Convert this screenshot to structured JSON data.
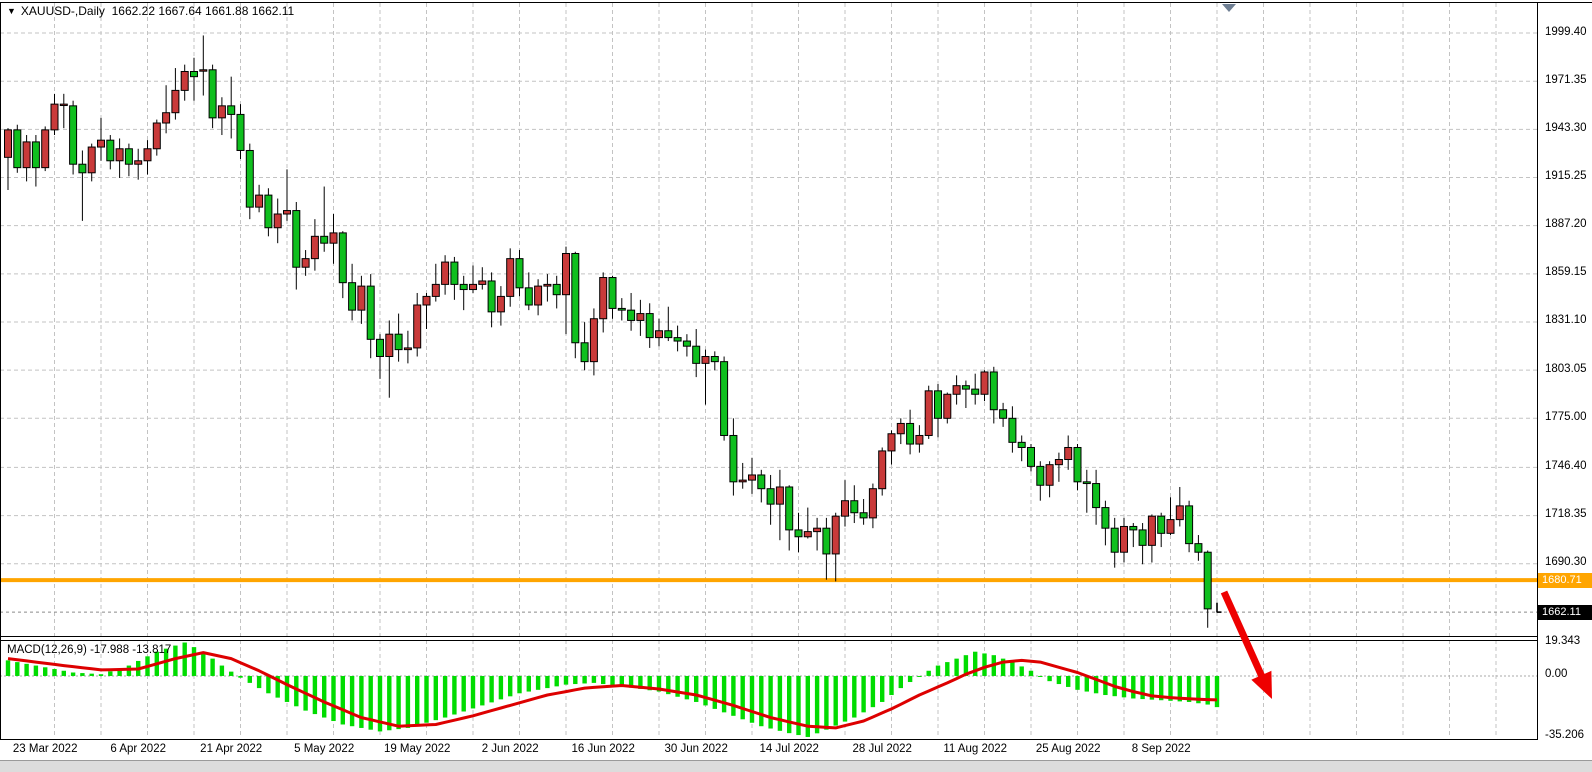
{
  "header": {
    "collapse_icon": "▼",
    "symbol": "XAUUSD-,Daily",
    "quote": "1662.22 1667.64 1661.88 1662.11"
  },
  "indicator_label": {
    "name": "MACD(12,26,9)",
    "values": "-17.988 -13.817"
  },
  "price_axis": {
    "labels": [
      "1999.40",
      "1971.35",
      "1943.30",
      "1915.25",
      "1887.20",
      "1859.15",
      "1831.10",
      "1803.05",
      "1775.00",
      "1746.40",
      "1718.35",
      "1690.30"
    ],
    "hline_badge": "1680.71",
    "bid_badge": "1662.11"
  },
  "macd_axis": {
    "labels": [
      "19.343",
      "0.00",
      "-35.206"
    ]
  },
  "colors": {
    "bull_body": "#C93A3A",
    "bear_body": "#0FBF1E",
    "body_outline": "#000000",
    "wick": "#000000",
    "macd_hist": "#00DC00",
    "macd_signal": "#DD0000",
    "hline": "#FFA500",
    "arrow": "#EE0000",
    "grid": "#C3C3C3",
    "bid_line": "#8A8A8A",
    "background": "#FFFFFF"
  },
  "chart_data": {
    "type": "candlestick",
    "symbol": "XAUUSD",
    "timeframe": "Daily",
    "title": "XAUUSD-,Daily",
    "current_bar": {
      "open": 1662.22,
      "high": 1667.64,
      "low": 1661.88,
      "close": 1662.11
    },
    "price_grid": [
      1999.4,
      1971.35,
      1943.3,
      1915.25,
      1887.2,
      1859.15,
      1831.1,
      1803.05,
      1775.0,
      1746.4,
      1718.35,
      1690.3
    ],
    "price_scale": {
      "max": 2016.9,
      "min": 1648.2
    },
    "support_hline": 1680.71,
    "bid_price": 1662.11,
    "date_ticks": [
      [
        4,
        "23 Mar 2022"
      ],
      [
        14,
        "6 Apr 2022"
      ],
      [
        24,
        "21 Apr 2022"
      ],
      [
        34,
        "5 May 2022"
      ],
      [
        44,
        "19 May 2022"
      ],
      [
        54,
        "2 Jun 2022"
      ],
      [
        64,
        "16 Jun 2022"
      ],
      [
        74,
        "30 Jun 2022"
      ],
      [
        84,
        "14 Jul 2022"
      ],
      [
        94,
        "28 Jul 2022"
      ],
      [
        104,
        "11 Aug 2022"
      ],
      [
        114,
        "25 Aug 2022"
      ],
      [
        124,
        "8 Sep 2022"
      ]
    ],
    "candles": [
      [
        "17 Mar 2022",
        1927,
        1944,
        1908,
        1943
      ],
      [
        "18 Mar 2022",
        1943,
        1946,
        1918,
        1921
      ],
      [
        "21 Mar 2022",
        1921,
        1940,
        1913,
        1936
      ],
      [
        "22 Mar 2022",
        1936,
        1940,
        1910,
        1921
      ],
      [
        "23 Mar 2022",
        1921,
        1945,
        1919,
        1943
      ],
      [
        "24 Mar 2022",
        1943,
        1964,
        1940,
        1958
      ],
      [
        "25 Mar 2022",
        1958,
        1964,
        1944,
        1958
      ],
      [
        "28 Mar 2022",
        1957,
        1960,
        1917,
        1923
      ],
      [
        "29 Mar 2022",
        1923,
        1931,
        1890,
        1918
      ],
      [
        "30 Mar 2022",
        1918,
        1935,
        1913,
        1933
      ],
      [
        "31 Mar 2022",
        1933,
        1950,
        1925,
        1937
      ],
      [
        "1 Apr 2022",
        1937,
        1940,
        1920,
        1925
      ],
      [
        "4 Apr 2022",
        1925,
        1938,
        1915,
        1932
      ],
      [
        "5 Apr 2022",
        1932,
        1935,
        1916,
        1923
      ],
      [
        "6 Apr 2022",
        1923,
        1932,
        1914,
        1925
      ],
      [
        "7 Apr 2022",
        1925,
        1937,
        1917,
        1932
      ],
      [
        "8 Apr 2022",
        1932,
        1949,
        1928,
        1947
      ],
      [
        "11 Apr 2022",
        1947,
        1969,
        1941,
        1953
      ],
      [
        "12 Apr 2022",
        1953,
        1979,
        1949,
        1966
      ],
      [
        "13 Apr 2022",
        1966,
        1981,
        1960,
        1977
      ],
      [
        "14 Apr 2022",
        1977,
        1985,
        1960,
        1974
      ],
      [
        "18 Apr 2022",
        1978,
        1998,
        1963,
        1978
      ],
      [
        "19 Apr 2022",
        1978,
        1981,
        1944,
        1950
      ],
      [
        "20 Apr 2022",
        1950,
        1962,
        1940,
        1957
      ],
      [
        "21 Apr 2022",
        1957,
        1974,
        1938,
        1952
      ],
      [
        "22 Apr 2022",
        1952,
        1958,
        1926,
        1931
      ],
      [
        "25 Apr 2022",
        1931,
        1935,
        1891,
        1898
      ],
      [
        "26 Apr 2022",
        1898,
        1911,
        1895,
        1905
      ],
      [
        "27 Apr 2022",
        1905,
        1909,
        1881,
        1886
      ],
      [
        "28 Apr 2022",
        1886,
        1903,
        1877,
        1894
      ],
      [
        "29 Apr 2022",
        1894,
        1920,
        1890,
        1896
      ],
      [
        "2 May 2022",
        1896,
        1901,
        1850,
        1863
      ],
      [
        "3 May 2022",
        1863,
        1873,
        1858,
        1868
      ],
      [
        "4 May 2022",
        1868,
        1891,
        1861,
        1881
      ],
      [
        "5 May 2022",
        1881,
        1910,
        1872,
        1877
      ],
      [
        "6 May 2022",
        1877,
        1894,
        1865,
        1883
      ],
      [
        "9 May 2022",
        1883,
        1884,
        1845,
        1854
      ],
      [
        "10 May 2022",
        1854,
        1865,
        1832,
        1838
      ],
      [
        "11 May 2022",
        1838,
        1858,
        1830,
        1852
      ],
      [
        "12 May 2022",
        1852,
        1859,
        1810,
        1821
      ],
      [
        "13 May 2022",
        1821,
        1824,
        1798,
        1811
      ],
      [
        "16 May 2022",
        1811,
        1832,
        1787,
        1824
      ],
      [
        "17 May 2022",
        1824,
        1836,
        1808,
        1815
      ],
      [
        "18 May 2022",
        1815,
        1826,
        1807,
        1816
      ],
      [
        "19 May 2022",
        1816,
        1848,
        1811,
        1841
      ],
      [
        "20 May 2022",
        1841,
        1848,
        1827,
        1846
      ],
      [
        "23 May 2022",
        1846,
        1865,
        1843,
        1853
      ],
      [
        "24 May 2022",
        1853,
        1870,
        1847,
        1866
      ],
      [
        "25 May 2022",
        1866,
        1869,
        1844,
        1853
      ],
      [
        "26 May 2022",
        1853,
        1858,
        1838,
        1850
      ],
      [
        "27 May 2022",
        1850,
        1864,
        1848,
        1853
      ],
      [
        "30 May 2022",
        1853,
        1863,
        1850,
        1855
      ],
      [
        "31 May 2022",
        1855,
        1860,
        1828,
        1837
      ],
      [
        "1 Jun 2022",
        1837,
        1852,
        1829,
        1846
      ],
      [
        "2 Jun 2022",
        1846,
        1874,
        1840,
        1868
      ],
      [
        "3 Jun 2022",
        1868,
        1873,
        1846,
        1851
      ],
      [
        "6 Jun 2022",
        1851,
        1860,
        1838,
        1841
      ],
      [
        "7 Jun 2022",
        1841,
        1856,
        1835,
        1852
      ],
      [
        "8 Jun 2022",
        1852,
        1859,
        1843,
        1853
      ],
      [
        "9 Jun 2022",
        1853,
        1858,
        1839,
        1847
      ],
      [
        "10 Jun 2022",
        1847,
        1875,
        1824,
        1871
      ],
      [
        "13 Jun 2022",
        1871,
        1872,
        1810,
        1819
      ],
      [
        "14 Jun 2022",
        1819,
        1831,
        1803,
        1808
      ],
      [
        "15 Jun 2022",
        1808,
        1839,
        1800,
        1833
      ],
      [
        "16 Jun 2022",
        1833,
        1860,
        1825,
        1857
      ],
      [
        "17 Jun 2022",
        1857,
        1858,
        1833,
        1839
      ],
      [
        "20 Jun 2022",
        1839,
        1845,
        1832,
        1838
      ],
      [
        "21 Jun 2022",
        1838,
        1848,
        1826,
        1832
      ],
      [
        "22 Jun 2022",
        1832,
        1844,
        1823,
        1836
      ],
      [
        "23 Jun 2022",
        1836,
        1842,
        1816,
        1822
      ],
      [
        "24 Jun 2022",
        1822,
        1833,
        1817,
        1826
      ],
      [
        "27 Jun 2022",
        1826,
        1840,
        1820,
        1822
      ],
      [
        "28 Jun 2022",
        1822,
        1829,
        1814,
        1820
      ],
      [
        "29 Jun 2022",
        1820,
        1824,
        1811,
        1817
      ],
      [
        "30 Jun 2022",
        1817,
        1827,
        1799,
        1807
      ],
      [
        "1 Jul 2022",
        1807,
        1815,
        1783,
        1811
      ],
      [
        "4 Jul 2022",
        1811,
        1814,
        1803,
        1808
      ],
      [
        "5 Jul 2022",
        1808,
        1811,
        1762,
        1765
      ],
      [
        "6 Jul 2022",
        1765,
        1775,
        1730,
        1738
      ],
      [
        "7 Jul 2022",
        1738,
        1749,
        1734,
        1739
      ],
      [
        "8 Jul 2022",
        1739,
        1752,
        1731,
        1742
      ],
      [
        "11 Jul 2022",
        1742,
        1745,
        1726,
        1734
      ],
      [
        "12 Jul 2022",
        1734,
        1742,
        1713,
        1725
      ],
      [
        "13 Jul 2022",
        1725,
        1745,
        1704,
        1735
      ],
      [
        "14 Jul 2022",
        1735,
        1736,
        1698,
        1710
      ],
      [
        "15 Jul 2022",
        1710,
        1720,
        1697,
        1706
      ],
      [
        "18 Jul 2022",
        1706,
        1723,
        1705,
        1709
      ],
      [
        "19 Jul 2022",
        1709,
        1717,
        1698,
        1711
      ],
      [
        "20 Jul 2022",
        1711,
        1717,
        1681,
        1696
      ],
      [
        "21 Jul 2022",
        1696,
        1720,
        1680,
        1718
      ],
      [
        "22 Jul 2022",
        1718,
        1739,
        1712,
        1727
      ],
      [
        "25 Jul 2022",
        1727,
        1736,
        1714,
        1720
      ],
      [
        "26 Jul 2022",
        1720,
        1728,
        1713,
        1717
      ],
      [
        "27 Jul 2022",
        1717,
        1737,
        1711,
        1734
      ],
      [
        "28 Jul 2022",
        1734,
        1758,
        1730,
        1756
      ],
      [
        "29 Jul 2022",
        1756,
        1768,
        1748,
        1766
      ],
      [
        "1 Aug 2022",
        1766,
        1775,
        1760,
        1772
      ],
      [
        "2 Aug 2022",
        1772,
        1780,
        1754,
        1760
      ],
      [
        "3 Aug 2022",
        1760,
        1771,
        1755,
        1765
      ],
      [
        "4 Aug 2022",
        1765,
        1794,
        1763,
        1791
      ],
      [
        "5 Aug 2022",
        1791,
        1795,
        1764,
        1775
      ],
      [
        "8 Aug 2022",
        1775,
        1790,
        1772,
        1789
      ],
      [
        "9 Aug 2022",
        1789,
        1800,
        1783,
        1794
      ],
      [
        "10 Aug 2022",
        1794,
        1797,
        1781,
        1792
      ],
      [
        "11 Aug 2022",
        1792,
        1801,
        1783,
        1789
      ],
      [
        "12 Aug 2022",
        1789,
        1803,
        1785,
        1802
      ],
      [
        "15 Aug 2022",
        1802,
        1805,
        1772,
        1780
      ],
      [
        "16 Aug 2022",
        1780,
        1784,
        1770,
        1775
      ],
      [
        "17 Aug 2022",
        1775,
        1782,
        1755,
        1761
      ],
      [
        "18 Aug 2022",
        1761,
        1765,
        1750,
        1758
      ],
      [
        "19 Aug 2022",
        1758,
        1760,
        1744,
        1747
      ],
      [
        "22 Aug 2022",
        1747,
        1750,
        1727,
        1736
      ],
      [
        "23 Aug 2022",
        1736,
        1750,
        1729,
        1748
      ],
      [
        "24 Aug 2022",
        1748,
        1755,
        1738,
        1751
      ],
      [
        "25 Aug 2022",
        1751,
        1765,
        1745,
        1758
      ],
      [
        "26 Aug 2022",
        1758,
        1760,
        1733,
        1738
      ],
      [
        "29 Aug 2022",
        1738,
        1745,
        1720,
        1737
      ],
      [
        "30 Aug 2022",
        1737,
        1745,
        1713,
        1723
      ],
      [
        "31 Aug 2022",
        1723,
        1727,
        1701,
        1711
      ],
      [
        "1 Sep 2022",
        1711,
        1717,
        1688,
        1697
      ],
      [
        "2 Sep 2022",
        1697,
        1717,
        1691,
        1712
      ],
      [
        "5 Sep 2022",
        1712,
        1714,
        1700,
        1710
      ],
      [
        "6 Sep 2022",
        1710,
        1714,
        1690,
        1701
      ],
      [
        "7 Sep 2022",
        1701,
        1719,
        1691,
        1718
      ],
      [
        "8 Sep 2022",
        1718,
        1720,
        1700,
        1708
      ],
      [
        "9 Sep 2022",
        1708,
        1729,
        1707,
        1716
      ],
      [
        "12 Sep 2022",
        1716,
        1735,
        1712,
        1724
      ],
      [
        "13 Sep 2022",
        1724,
        1727,
        1697,
        1702
      ],
      [
        "14 Sep 2022",
        1702,
        1707,
        1692,
        1697
      ],
      [
        "15 Sep 2022",
        1697,
        1698,
        1653,
        1664
      ],
      [
        "16 Sep 2022",
        1662.22,
        1667.64,
        1661.88,
        1662.11
      ]
    ],
    "macd": {
      "label": "MACD(12,26,9)",
      "current_main": -17.988,
      "current_signal": -13.817,
      "axis_values": [
        19.343,
        0.0,
        -35.206
      ],
      "scale_max": 19.6,
      "scale_min": -35.8,
      "hist_anchors": [
        [
          0,
          9
        ],
        [
          3,
          6
        ],
        [
          7,
          2
        ],
        [
          10,
          1
        ],
        [
          13,
          6
        ],
        [
          16,
          14
        ],
        [
          19,
          19.3
        ],
        [
          21,
          14
        ],
        [
          23,
          6
        ],
        [
          25,
          -1
        ],
        [
          28,
          -10
        ],
        [
          32,
          -20
        ],
        [
          36,
          -28
        ],
        [
          40,
          -32
        ],
        [
          43,
          -30
        ],
        [
          47,
          -24
        ],
        [
          51,
          -17
        ],
        [
          55,
          -10
        ],
        [
          60,
          -5
        ],
        [
          63,
          -4
        ],
        [
          66,
          -6
        ],
        [
          70,
          -9
        ],
        [
          74,
          -15
        ],
        [
          77,
          -21
        ],
        [
          81,
          -29
        ],
        [
          84,
          -33
        ],
        [
          86,
          -35.2
        ],
        [
          88,
          -31
        ],
        [
          91,
          -24
        ],
        [
          94,
          -15
        ],
        [
          96,
          -7
        ],
        [
          98,
          0
        ],
        [
          100,
          6
        ],
        [
          102,
          10
        ],
        [
          104,
          14
        ],
        [
          106,
          12
        ],
        [
          108,
          8
        ],
        [
          110,
          3
        ],
        [
          112,
          -3
        ],
        [
          115,
          -8
        ],
        [
          118,
          -11
        ],
        [
          121,
          -13
        ],
        [
          124,
          -14
        ],
        [
          127,
          -15
        ],
        [
          129,
          -16.5
        ],
        [
          130,
          -17.99
        ]
      ],
      "signal_anchors": [
        [
          0,
          10
        ],
        [
          6,
          6
        ],
        [
          10,
          3.5
        ],
        [
          14,
          4
        ],
        [
          18,
          10
        ],
        [
          21,
          13.5
        ],
        [
          24,
          10
        ],
        [
          27,
          3
        ],
        [
          30,
          -5
        ],
        [
          34,
          -15
        ],
        [
          38,
          -24
        ],
        [
          42,
          -29
        ],
        [
          46,
          -28
        ],
        [
          50,
          -23
        ],
        [
          54,
          -17
        ],
        [
          58,
          -11
        ],
        [
          62,
          -7
        ],
        [
          66,
          -5.5
        ],
        [
          70,
          -7.5
        ],
        [
          74,
          -11
        ],
        [
          78,
          -17
        ],
        [
          82,
          -24
        ],
        [
          86,
          -29
        ],
        [
          89,
          -30
        ],
        [
          92,
          -26
        ],
        [
          95,
          -19
        ],
        [
          98,
          -11
        ],
        [
          101,
          -4
        ],
        [
          103,
          1
        ],
        [
          105,
          5
        ],
        [
          107,
          8
        ],
        [
          109,
          9
        ],
        [
          111,
          8
        ],
        [
          113,
          5
        ],
        [
          115,
          2
        ],
        [
          117,
          -2
        ],
        [
          119,
          -6
        ],
        [
          121,
          -9
        ],
        [
          123,
          -11.5
        ],
        [
          125,
          -12.5
        ],
        [
          127,
          -13.2
        ],
        [
          130,
          -13.82
        ]
      ]
    },
    "annotation_arrow": {
      "from": [
        1224,
        592
      ],
      "to": [
        1272,
        699
      ]
    }
  }
}
